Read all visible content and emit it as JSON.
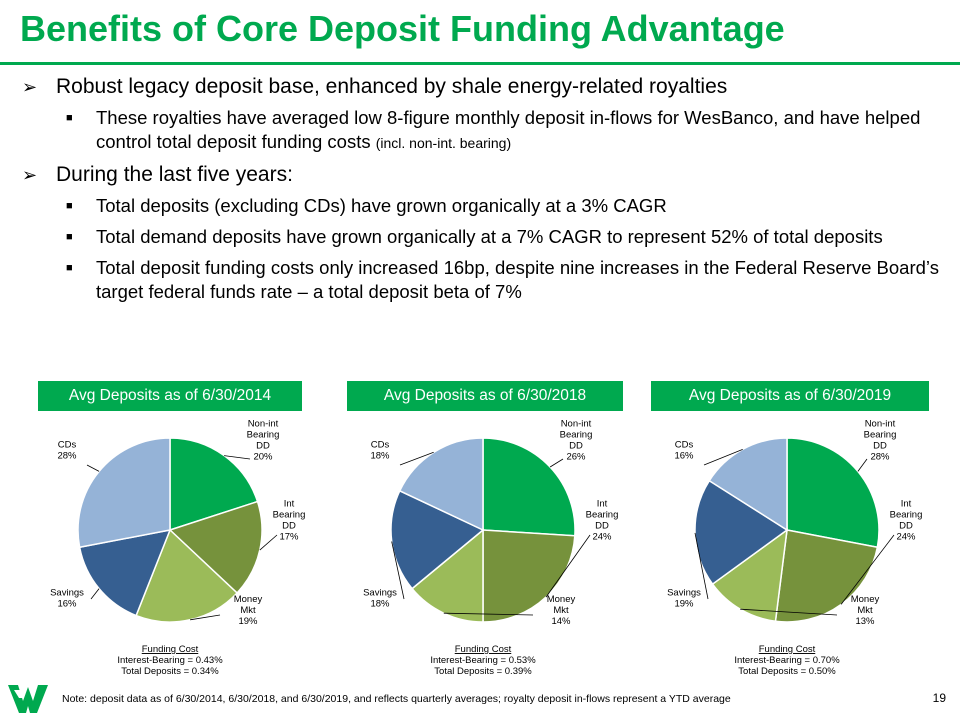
{
  "page": {
    "title": "Benefits of Core Deposit Funding Advantage",
    "page_number": "19",
    "footnote": "Note: deposit data as of 6/30/2014, 6/30/2018, and 6/30/2019, and reflects quarterly averages;  royalty deposit in-flows represent a YTD average"
  },
  "colors": {
    "accent": "#00A94F",
    "non_int": "#00A94F",
    "int": "#76923C",
    "money": "#9BBB59",
    "savings": "#365F91",
    "cds": "#95B3D7"
  },
  "bullets": [
    {
      "text": "Robust legacy deposit base, enhanced by shale energy-related royalties",
      "sub": [
        {
          "text": "These royalties have averaged low 8-figure monthly deposit in-flows for WesBanco, and have helped control total deposit funding costs",
          "small": "(incl. non-int. bearing)"
        }
      ]
    },
    {
      "text": "During the last five years:",
      "sub": [
        {
          "text": "Total deposits (excluding CDs) have grown organically at a 3% CAGR",
          "small": ""
        },
        {
          "text": "Total demand deposits have grown organically at a 7% CAGR to represent 52% of total deposits",
          "small": ""
        },
        {
          "text": "Total deposit funding costs only increased 16bp, despite nine increases in the Federal Reserve Board’s target federal funds rate – a total deposit beta of 7%",
          "small": ""
        }
      ]
    }
  ],
  "chart_data": [
    {
      "type": "pie",
      "title": "Avg Deposits as of 6/30/2014",
      "slices": [
        {
          "key": "non_int",
          "label": [
            "Non-int",
            "Bearing",
            "DD",
            "20%"
          ],
          "value": 20
        },
        {
          "key": "int",
          "label": [
            "Int",
            "Bearing",
            "DD",
            "17%"
          ],
          "value": 17
        },
        {
          "key": "money",
          "label": [
            "Money",
            "Mkt",
            "19%"
          ],
          "value": 19
        },
        {
          "key": "savings",
          "label": [
            "Savings",
            "16%"
          ],
          "value": 16
        },
        {
          "key": "cds",
          "label": [
            "CDs",
            "28%"
          ],
          "value": 28
        }
      ],
      "funding_cost": {
        "title": "Funding Cost",
        "line1": "Interest-Bearing = 0.43%",
        "line2": "Total Deposits = 0.34%"
      }
    },
    {
      "type": "pie",
      "title": "Avg Deposits as of 6/30/2018",
      "slices": [
        {
          "key": "non_int",
          "label": [
            "Non-int",
            "Bearing",
            "DD",
            "26%"
          ],
          "value": 26
        },
        {
          "key": "int",
          "label": [
            "Int",
            "Bearing",
            "DD",
            "24%"
          ],
          "value": 24
        },
        {
          "key": "money",
          "label": [
            "Money",
            "Mkt",
            "14%"
          ],
          "value": 14
        },
        {
          "key": "savings",
          "label": [
            "Savings",
            "18%"
          ],
          "value": 18
        },
        {
          "key": "cds",
          "label": [
            "CDs",
            "18%"
          ],
          "value": 18
        }
      ],
      "funding_cost": {
        "title": "Funding Cost",
        "line1": "Interest-Bearing = 0.53%",
        "line2": "Total Deposits = 0.39%"
      }
    },
    {
      "type": "pie",
      "title": "Avg Deposits as of 6/30/2019",
      "slices": [
        {
          "key": "non_int",
          "label": [
            "Non-int",
            "Bearing",
            "DD",
            "28%"
          ],
          "value": 28
        },
        {
          "key": "int",
          "label": [
            "Int",
            "Bearing",
            "DD",
            "24%"
          ],
          "value": 24
        },
        {
          "key": "money",
          "label": [
            "Money",
            "Mkt",
            "13%"
          ],
          "value": 13
        },
        {
          "key": "savings",
          "label": [
            "Savings",
            "19%"
          ],
          "value": 19
        },
        {
          "key": "cds",
          "label": [
            "CDs",
            "16%"
          ],
          "value": 16
        }
      ],
      "funding_cost": {
        "title": "Funding Cost",
        "line1": "Interest-Bearing = 0.70%",
        "line2": "Total Deposits = 0.50%"
      }
    }
  ]
}
